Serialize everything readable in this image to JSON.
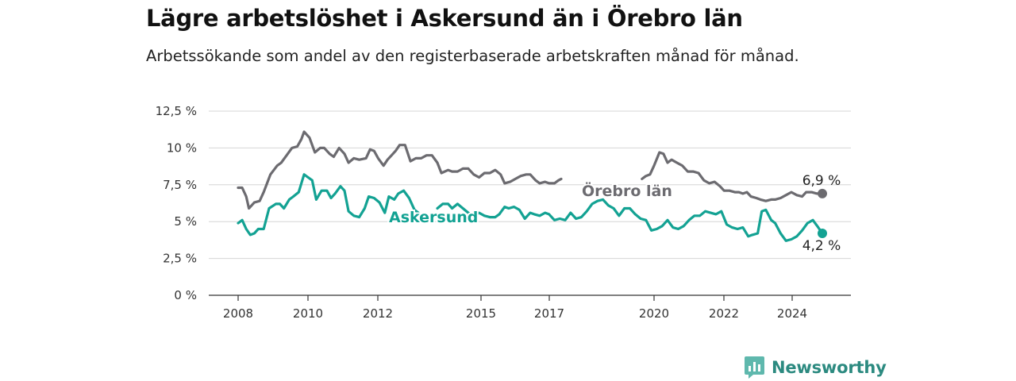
{
  "title": "Lägre arbetslöshet i Askersund än i Örebro län",
  "subtitle": "Arbetssökande som andel av den registerbaserade arbetskraften månad för månad.",
  "brand": "Newsworthy",
  "chart_data": {
    "type": "line",
    "ylim": [
      0,
      12.5
    ],
    "xlim": [
      2008,
      2025
    ],
    "y_ticks": [
      {
        "value": 0,
        "label": "0 %"
      },
      {
        "value": 2.5,
        "label": "2,5 %"
      },
      {
        "value": 5,
        "label": "5 %"
      },
      {
        "value": 7.5,
        "label": "7,5 %"
      },
      {
        "value": 10,
        "label": "10 %"
      },
      {
        "value": 12.5,
        "label": "12,5 %"
      }
    ],
    "x_ticks": [
      {
        "value": 2008,
        "label": "2008"
      },
      {
        "value": 2010,
        "label": "2010"
      },
      {
        "value": 2012,
        "label": "2012"
      },
      {
        "value": 2015,
        "label": "2015"
      },
      {
        "value": 2017,
        "label": "2017"
      },
      {
        "value": 2020,
        "label": "2020"
      },
      {
        "value": 2022,
        "label": "2022"
      },
      {
        "value": 2024,
        "label": "2024"
      }
    ],
    "grid": true,
    "colors": {
      "orebro": "#6c6b70",
      "askersund": "#13a293",
      "grid": "#d6d6d6"
    },
    "series": [
      {
        "name": "Örebro län",
        "color": "#6c6b70",
        "end_label": "6,9 %",
        "points": [
          [
            2008.0,
            7.3
          ],
          [
            2008.15,
            7.3
          ],
          [
            2008.3,
            6.7
          ],
          [
            2008.4,
            5.9
          ],
          [
            2008.5,
            6.1
          ],
          [
            2008.6,
            6.3
          ],
          [
            2008.8,
            6.4
          ],
          [
            2008.95,
            7.0
          ],
          [
            2009.2,
            8.2
          ],
          [
            2009.45,
            8.8
          ],
          [
            2009.6,
            9.0
          ],
          [
            2009.8,
            9.5
          ],
          [
            2010.0,
            10.0
          ],
          [
            2010.2,
            10.1
          ],
          [
            2010.35,
            10.6
          ],
          [
            2010.45,
            11.1
          ],
          [
            2010.65,
            10.7
          ],
          [
            2010.85,
            9.7
          ],
          [
            2011.05,
            10.0
          ],
          [
            2011.2,
            10.0
          ],
          [
            2011.4,
            9.6
          ],
          [
            2011.55,
            9.4
          ],
          [
            2011.75,
            10.0
          ],
          [
            2011.95,
            9.6
          ],
          [
            2012.1,
            9.0
          ],
          [
            2012.3,
            9.3
          ],
          [
            2012.5,
            9.2
          ],
          [
            2012.75,
            9.3
          ],
          [
            2012.9,
            9.9
          ],
          [
            2013.05,
            9.8
          ],
          [
            2013.2,
            9.3
          ],
          [
            2013.4,
            8.8
          ],
          [
            2013.55,
            9.2
          ],
          [
            2013.7,
            9.5
          ],
          [
            2013.85,
            9.8
          ],
          [
            2014.0,
            10.2
          ],
          [
            2014.2,
            10.2
          ],
          [
            2014.4,
            9.1
          ],
          [
            2014.6,
            9.3
          ],
          [
            2014.8,
            9.3
          ],
          [
            2015.0,
            9.5
          ],
          [
            2015.2,
            9.5
          ],
          [
            2015.4,
            9.0
          ],
          [
            2015.55,
            8.3
          ],
          [
            2015.8,
            8.5
          ],
          [
            2015.95,
            8.4
          ],
          [
            2016.15,
            8.4
          ],
          [
            2016.35,
            8.6
          ],
          [
            2016.55,
            8.6
          ],
          [
            2016.75,
            8.2
          ],
          [
            2016.95,
            8.0
          ],
          [
            2017.15,
            8.3
          ],
          [
            2017.35,
            8.3
          ],
          [
            2017.55,
            8.5
          ],
          [
            2017.75,
            8.2
          ],
          [
            2017.9,
            7.6
          ],
          [
            2018.1,
            7.7
          ],
          [
            2018.3,
            7.9
          ],
          [
            2018.5,
            8.1
          ],
          [
            2018.7,
            8.2
          ],
          [
            2018.85,
            8.2
          ],
          [
            2019.05,
            7.8
          ],
          [
            2019.2,
            7.6
          ],
          [
            2019.4,
            7.7
          ],
          [
            2019.55,
            7.6
          ],
          [
            2019.75,
            7.6
          ],
          [
            2019.9,
            7.8
          ],
          [
            2020.0,
            7.9
          ],
          null,
          [
            2023.0,
            7.9
          ],
          [
            2023.15,
            8.1
          ],
          [
            2023.3,
            8.2
          ],
          [
            2023.45,
            8.8
          ],
          [
            2023.65,
            9.7
          ],
          [
            2023.8,
            9.6
          ],
          [
            2023.95,
            9.0
          ],
          [
            2024.1,
            9.2
          ],
          [
            2024.3,
            9.0
          ],
          [
            2024.5,
            8.8
          ],
          [
            2024.7,
            8.4
          ],
          [
            2024.9,
            8.4
          ],
          [
            2025.1,
            8.3
          ],
          [
            2025.3,
            7.8
          ],
          [
            2025.5,
            7.6
          ],
          [
            2025.7,
            7.7
          ],
          [
            2025.9,
            7.4
          ],
          [
            2026.05,
            7.1
          ],
          [
            2026.25,
            7.1
          ],
          [
            2026.45,
            7.0
          ],
          [
            2026.6,
            7.0
          ],
          [
            2026.75,
            6.9
          ],
          [
            2026.9,
            7.0
          ],
          [
            2027.05,
            6.7
          ],
          [
            2027.25,
            6.6
          ],
          [
            2027.4,
            6.5
          ],
          [
            2027.6,
            6.4
          ],
          [
            2027.8,
            6.5
          ],
          [
            2027.95,
            6.5
          ],
          [
            2028.15,
            6.6
          ],
          [
            2028.35,
            6.8
          ],
          [
            2028.55,
            7.0
          ],
          [
            2028.75,
            6.8
          ],
          [
            2028.95,
            6.7
          ],
          [
            2029.1,
            7.0
          ],
          [
            2029.3,
            7.0
          ],
          [
            2029.5,
            6.9
          ],
          [
            2029.7,
            6.9
          ]
        ]
      },
      {
        "name": "Askersund",
        "color": "#13a293",
        "end_label": "4,2 %",
        "points": [
          [
            2008.0,
            4.9
          ],
          [
            2008.15,
            5.1
          ],
          [
            2008.3,
            4.5
          ],
          [
            2008.45,
            4.1
          ],
          [
            2008.6,
            4.2
          ],
          [
            2008.75,
            4.5
          ],
          [
            2008.95,
            4.5
          ],
          [
            2009.15,
            5.9
          ],
          [
            2009.4,
            6.2
          ],
          [
            2009.55,
            6.2
          ],
          [
            2009.7,
            5.9
          ],
          [
            2009.9,
            6.5
          ],
          [
            2010.05,
            6.7
          ],
          [
            2010.25,
            7.0
          ],
          [
            2010.45,
            8.2
          ],
          [
            2010.6,
            8.0
          ],
          [
            2010.75,
            7.8
          ],
          [
            2010.9,
            6.5
          ],
          [
            2011.1,
            7.1
          ],
          [
            2011.3,
            7.1
          ],
          [
            2011.45,
            6.6
          ],
          [
            2011.6,
            6.9
          ],
          [
            2011.8,
            7.4
          ],
          [
            2011.95,
            7.1
          ],
          [
            2012.1,
            5.7
          ],
          [
            2012.3,
            5.4
          ],
          [
            2012.5,
            5.3
          ],
          [
            2012.7,
            5.9
          ],
          [
            2012.85,
            6.7
          ],
          [
            2013.05,
            6.6
          ],
          [
            2013.25,
            6.3
          ],
          [
            2013.45,
            5.6
          ],
          [
            2013.6,
            6.7
          ],
          [
            2013.8,
            6.5
          ],
          [
            2013.95,
            6.9
          ],
          [
            2014.15,
            7.1
          ],
          [
            2014.35,
            6.6
          ],
          [
            2014.55,
            5.8
          ],
          [
            2014.7,
            5.6
          ],
          null,
          [
            2015.4,
            5.9
          ],
          [
            2015.6,
            6.2
          ],
          [
            2015.8,
            6.2
          ],
          [
            2015.95,
            5.9
          ],
          [
            2016.15,
            6.2
          ],
          [
            2016.35,
            5.9
          ],
          [
            2016.55,
            5.6
          ],
          [
            2016.75,
            5.4
          ],
          [
            2016.95,
            5.6
          ],
          [
            2017.15,
            5.4
          ],
          [
            2017.35,
            5.3
          ],
          [
            2017.55,
            5.3
          ],
          [
            2017.7,
            5.5
          ],
          [
            2017.9,
            6.0
          ],
          [
            2018.05,
            5.9
          ],
          [
            2018.25,
            6.0
          ],
          [
            2018.45,
            5.8
          ],
          [
            2018.65,
            5.2
          ],
          [
            2018.85,
            5.6
          ],
          [
            2019.0,
            5.5
          ],
          [
            2019.2,
            5.4
          ],
          [
            2019.4,
            5.6
          ],
          [
            2019.55,
            5.5
          ],
          [
            2019.75,
            5.1
          ],
          [
            2019.95,
            5.2
          ],
          [
            2020.15,
            5.1
          ],
          [
            2020.35,
            5.6
          ],
          [
            2020.55,
            5.2
          ],
          [
            2020.75,
            5.3
          ],
          [
            2020.95,
            5.7
          ],
          [
            2021.15,
            6.2
          ],
          [
            2021.35,
            6.4
          ],
          [
            2021.55,
            6.5
          ],
          [
            2021.75,
            6.1
          ],
          [
            2021.95,
            5.9
          ],
          [
            2022.15,
            5.4
          ],
          [
            2022.35,
            5.9
          ],
          [
            2022.55,
            5.9
          ],
          [
            2022.75,
            5.5
          ],
          [
            2022.95,
            5.2
          ],
          [
            2023.15,
            5.1
          ],
          [
            2023.35,
            4.4
          ],
          [
            2023.55,
            4.5
          ],
          [
            2023.75,
            4.7
          ],
          [
            2023.95,
            5.1
          ],
          [
            2024.15,
            4.6
          ],
          [
            2024.35,
            4.5
          ],
          [
            2024.55,
            4.7
          ],
          [
            2024.75,
            5.1
          ],
          [
            2024.95,
            5.4
          ],
          [
            2025.15,
            5.4
          ],
          [
            2025.35,
            5.7
          ],
          [
            2025.55,
            5.6
          ],
          [
            2025.75,
            5.5
          ],
          [
            2025.95,
            5.7
          ],
          [
            2026.15,
            4.8
          ],
          [
            2026.35,
            4.6
          ],
          [
            2026.55,
            4.5
          ],
          [
            2026.75,
            4.6
          ],
          [
            2026.95,
            4.0
          ],
          [
            2027.1,
            4.1
          ],
          [
            2027.3,
            4.2
          ],
          [
            2027.45,
            5.7
          ],
          [
            2027.6,
            5.8
          ],
          [
            2027.8,
            5.1
          ],
          [
            2027.95,
            4.9
          ],
          [
            2028.15,
            4.2
          ],
          [
            2028.35,
            3.7
          ],
          [
            2028.55,
            3.8
          ],
          [
            2028.75,
            4.0
          ],
          [
            2028.95,
            4.4
          ],
          [
            2029.15,
            4.9
          ],
          [
            2029.35,
            5.1
          ],
          [
            2029.55,
            4.6
          ],
          [
            2029.7,
            4.2
          ]
        ]
      }
    ]
  }
}
